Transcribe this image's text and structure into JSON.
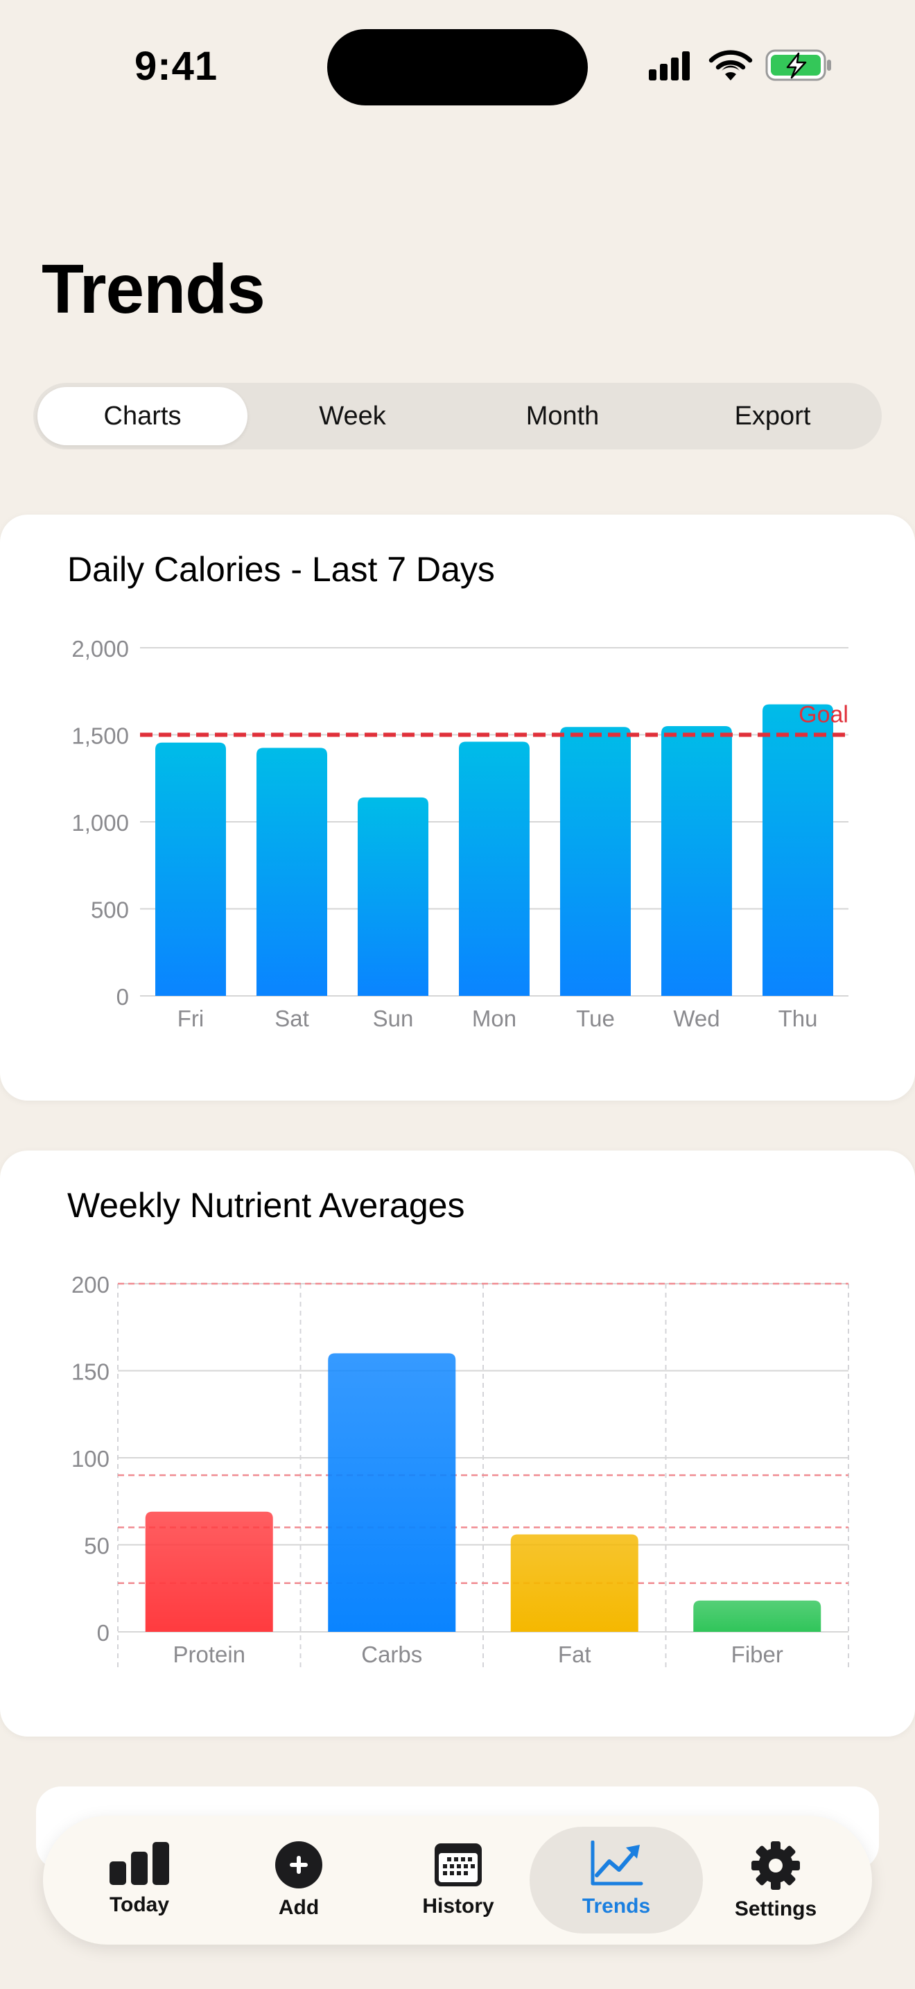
{
  "status_bar": {
    "time": "9:41"
  },
  "page": {
    "title": "Trends"
  },
  "segments": [
    {
      "label": "Charts",
      "selected": true
    },
    {
      "label": "Week",
      "selected": false
    },
    {
      "label": "Month",
      "selected": false
    },
    {
      "label": "Export",
      "selected": false
    }
  ],
  "chart_data": [
    {
      "type": "bar",
      "title": "Daily Calories - Last 7 Days",
      "categories": [
        "Fri",
        "Sat",
        "Sun",
        "Mon",
        "Tue",
        "Wed",
        "Thu"
      ],
      "values": [
        1455,
        1425,
        1140,
        1460,
        1545,
        1550,
        1675
      ],
      "ylim": [
        0,
        2000
      ],
      "yticks": [
        0,
        500,
        1000,
        1500,
        2000
      ],
      "ytick_labels": [
        "0",
        "500",
        "1,000",
        "1,500",
        "2,000"
      ],
      "reference_line": {
        "label": "Goal",
        "value": 1500,
        "color": "#E0303A"
      },
      "bar_color_top": "#00BCE8",
      "bar_color_bottom": "#0A84FF",
      "grid": true
    },
    {
      "type": "bar",
      "title": "Weekly Nutrient Averages",
      "categories": [
        "Protein",
        "Carbs",
        "Fat",
        "Fiber"
      ],
      "values": [
        69,
        160,
        56,
        18
      ],
      "colors": [
        "#FF3B3F",
        "#0A84FF",
        "#F5B800",
        "#30C55A"
      ],
      "ylim": [
        0,
        200
      ],
      "yticks": [
        0,
        50,
        100,
        150,
        200
      ],
      "ytick_labels": [
        "0",
        "50",
        "100",
        "150",
        "200"
      ],
      "target_lines": [
        28,
        60,
        90,
        200
      ],
      "grid": true
    }
  ],
  "tabbar": {
    "items": [
      {
        "label": "Today",
        "icon": "bar-chart-icon",
        "active": false
      },
      {
        "label": "Add",
        "icon": "plus-circle-icon",
        "active": false
      },
      {
        "label": "History",
        "icon": "calendar-icon",
        "active": false
      },
      {
        "label": "Trends",
        "icon": "trend-arrow-icon",
        "active": true
      },
      {
        "label": "Settings",
        "icon": "gear-icon",
        "active": false
      }
    ],
    "active_color": "#1A7FE0"
  }
}
